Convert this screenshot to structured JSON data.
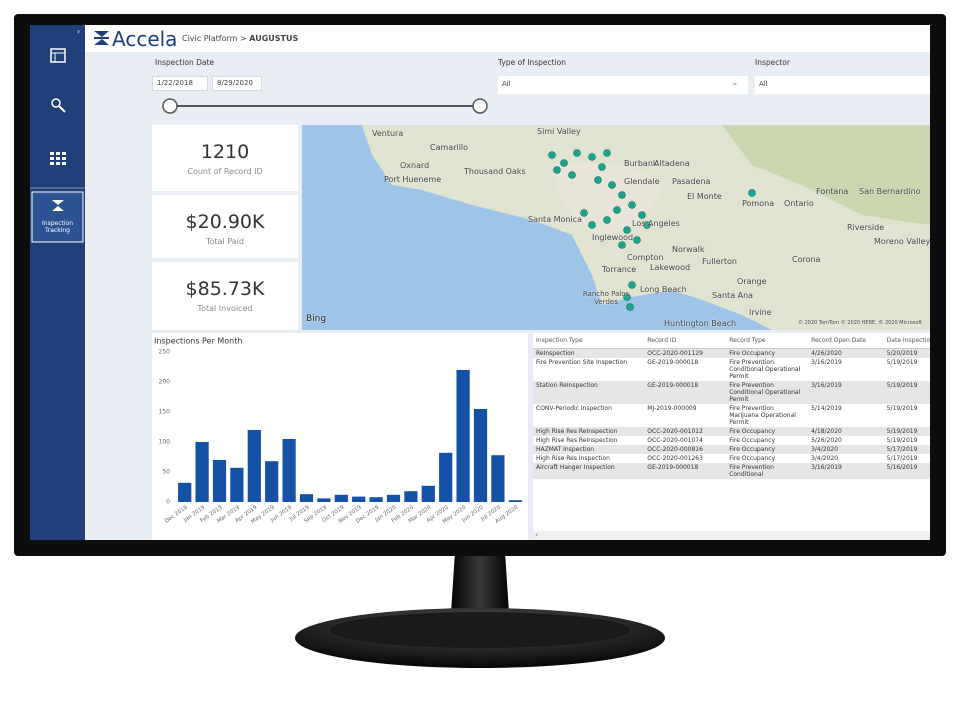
{
  "header": {
    "logo": "Accela",
    "breadcrumb": "Civic Platform",
    "separator": ">",
    "current": "AUGUSTUS"
  },
  "sidebar": {
    "active_item": "Inspection Tracking"
  },
  "filters": {
    "date_label": "Inspection Date",
    "date_start": "1/22/2018",
    "date_end": "8/29/2020",
    "type_label": "Type of Inspection",
    "type_value": "All",
    "inspector_label": "Inspector",
    "inspector_value": "All"
  },
  "kpis": [
    {
      "value": "1210",
      "label": "Count of Record ID"
    },
    {
      "value": "$20.90K",
      "label": "Total Paid"
    },
    {
      "value": "$85.73K",
      "label": "Total Invoiced"
    }
  ],
  "map": {
    "labels": [
      "Ventura",
      "Camarillo",
      "Oxnard",
      "Port Hueneme",
      "Thousand Oaks",
      "Simi Valley",
      "Burbank",
      "Altadena",
      "Glendale",
      "Pasadena",
      "El Monte",
      "Pomona",
      "Ontario",
      "Fontana",
      "San Bernardino",
      "Santa Monica",
      "Los Angeles",
      "Inglewood",
      "Norwalk",
      "Compton",
      "Fullerton",
      "Corona",
      "Riverside",
      "Moreno Valley",
      "Torrance",
      "Lakewood",
      "Orange",
      "Long Beach",
      "Santa Ana",
      "Rancho Palos Verdes",
      "Irvine",
      "Huntington Beach"
    ],
    "provider": "Bing",
    "copyright": "© 2020 TomTom © 2020 HERE, © 2020 Microsoft"
  },
  "chart_data": {
    "type": "bar",
    "title": "Inspections Per Month",
    "categories": [
      "Dec 2018",
      "Jan 2019",
      "Feb 2019",
      "Mar 2019",
      "Apr 2019",
      "May 2019",
      "Jun 2019",
      "Jul 2019",
      "Sep 2019",
      "Oct 2019",
      "Nov 2019",
      "Dec 2019",
      "Jan 2020",
      "Feb 2020",
      "Mar 2020",
      "Apr 2020",
      "May 2020",
      "Jun 2020",
      "Jul 2020",
      "Aug 2020"
    ],
    "values": [
      32,
      100,
      70,
      57,
      120,
      68,
      105,
      13,
      6,
      12,
      9,
      8,
      12,
      18,
      27,
      82,
      220,
      155,
      78,
      3
    ],
    "color": "#1452a6",
    "ylim": [
      0,
      250
    ],
    "yticks": [
      0,
      50,
      100,
      150,
      200,
      250
    ],
    "grid": false
  },
  "table": {
    "columns": [
      "Inspection Type",
      "Record ID",
      "Record Type",
      "Record Open Date",
      "Date Inspection"
    ],
    "rows": [
      [
        "ReInspection",
        "OCC-2020-001129",
        "Fire Occupancy",
        "4/26/2020",
        "5/20/2019"
      ],
      [
        "Fire Prevention Site Inspection",
        "GE-2019-000018",
        "Fire Prevention Conditional Operational Permit",
        "3/16/2019",
        "5/19/2019"
      ],
      [
        "Station ReInspection",
        "GE-2019-000018",
        "Fire Prevention Conditional Operational Permit",
        "3/16/2019",
        "5/19/2019"
      ],
      [
        "CONV-Periodic Inspection",
        "MJ-2019-000009",
        "Fire Prevention Marijuana Operational Permit",
        "5/14/2019",
        "5/19/2019"
      ],
      [
        "High Rise Res ReInspection",
        "OCC-2020-001012",
        "Fire Occupancy",
        "4/18/2020",
        "5/19/2019"
      ],
      [
        "High Rise Res ReInspection",
        "OCC-2020-001074",
        "Fire Occupancy",
        "5/26/2020",
        "5/19/2019"
      ],
      [
        "HAZMAT Inspection",
        "OCC-2020-000816",
        "Fire Occupancy",
        "3/4/2020",
        "5/17/2019"
      ],
      [
        "High Rise Res Inspection",
        "OCC-2020-001263",
        "Fire Occupancy",
        "3/4/2020",
        "5/17/2019"
      ],
      [
        "Aircraft Hanger Inspection",
        "GE-2019-000018",
        "Fire Prevention Conditional",
        "3/16/2019",
        "5/16/2019"
      ]
    ]
  }
}
